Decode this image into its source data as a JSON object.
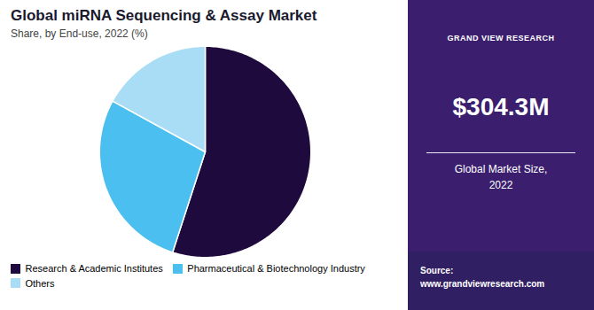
{
  "chart_data": {
    "type": "pie",
    "title": "Global miRNA Sequencing & Assay Market",
    "subtitle": "Share, by End-use, 2022 (%)",
    "categories": [
      "Research & Academic Institutes",
      "Pharmaceutical & Biotechnology Industry",
      "Others"
    ],
    "values": [
      55.0,
      28.0,
      17.0
    ],
    "colors": [
      "#1e0a3c",
      "#4bbfef",
      "#a8ddf5"
    ],
    "legend": "bottom",
    "annotations": [
      "GRAND VIEW RESEARCH",
      "$304.3M",
      "Global Market Size,\n2022",
      "Source:\nwww.grandviewresearch.com"
    ]
  }
}
